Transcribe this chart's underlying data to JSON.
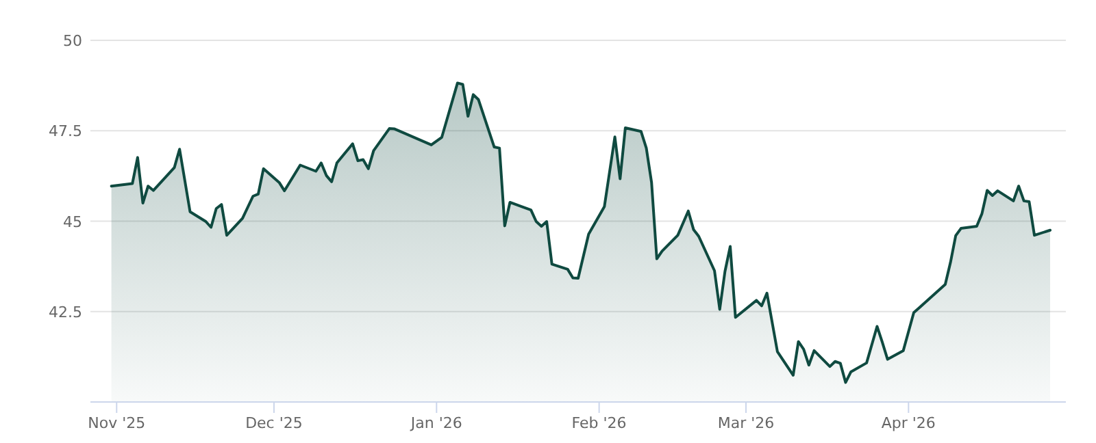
{
  "chart_data": {
    "type": "area",
    "x": [
      "2025-10-31",
      "2025-11-04",
      "2025-11-05",
      "2025-11-06",
      "2025-11-07",
      "2025-11-08",
      "2025-11-12",
      "2025-11-13",
      "2025-11-15",
      "2025-11-18",
      "2025-11-19",
      "2025-11-20",
      "2025-11-21",
      "2025-11-22",
      "2025-11-25",
      "2025-11-27",
      "2025-11-28",
      "2025-11-29",
      "2025-12-02",
      "2025-12-03",
      "2025-12-06",
      "2025-12-09",
      "2025-12-10",
      "2025-12-11",
      "2025-12-12",
      "2025-12-13",
      "2025-12-16",
      "2025-12-17",
      "2025-12-18",
      "2025-12-19",
      "2025-12-20",
      "2025-12-23",
      "2025-12-24",
      "2025-12-31",
      "2026-01-02",
      "2026-01-05",
      "2026-01-06",
      "2026-01-07",
      "2026-01-08",
      "2026-01-09",
      "2026-01-12",
      "2026-01-13",
      "2026-01-14",
      "2026-01-15",
      "2026-01-19",
      "2026-01-20",
      "2026-01-21",
      "2026-01-22",
      "2026-01-23",
      "2026-01-26",
      "2026-01-27",
      "2026-01-28",
      "2026-01-30",
      "2026-02-02",
      "2026-02-04",
      "2026-02-05",
      "2026-02-06",
      "2026-02-09",
      "2026-02-10",
      "2026-02-11",
      "2026-02-12",
      "2026-02-13",
      "2026-02-16",
      "2026-02-18",
      "2026-02-19",
      "2026-02-20",
      "2026-02-23",
      "2026-02-24",
      "2026-02-25",
      "2026-02-26",
      "2026-02-27",
      "2026-03-03",
      "2026-03-04",
      "2026-03-05",
      "2026-03-07",
      "2026-03-10",
      "2026-03-11",
      "2026-03-12",
      "2026-03-13",
      "2026-03-14",
      "2026-03-17",
      "2026-03-18",
      "2026-03-19",
      "2026-03-20",
      "2026-03-21",
      "2026-03-24",
      "2026-03-26",
      "2026-03-27",
      "2026-03-28",
      "2026-03-31",
      "2026-04-02",
      "2026-04-03",
      "2026-04-08",
      "2026-04-09",
      "2026-04-10",
      "2026-04-11",
      "2026-04-14",
      "2026-04-15",
      "2026-04-16",
      "2026-04-17",
      "2026-04-18",
      "2026-04-21",
      "2026-04-22",
      "2026-04-23",
      "2026-04-24",
      "2026-04-25",
      "2026-04-28"
    ],
    "series": [
      {
        "color": "#0f4a40",
        "values": [
          45.97,
          46.04,
          46.76,
          45.5,
          45.97,
          45.85,
          46.48,
          46.99,
          45.26,
          44.99,
          44.83,
          45.35,
          45.46,
          44.61,
          45.08,
          45.69,
          45.75,
          46.45,
          46.07,
          45.84,
          46.55,
          46.38,
          46.61,
          46.26,
          46.09,
          46.61,
          47.14,
          46.67,
          46.7,
          46.45,
          46.95,
          47.56,
          47.55,
          47.11,
          47.32,
          48.82,
          48.78,
          47.9,
          48.5,
          48.36,
          47.05,
          47.02,
          44.87,
          45.52,
          45.31,
          44.99,
          44.86,
          44.99,
          43.81,
          43.67,
          43.43,
          43.42,
          44.64,
          45.4,
          47.33,
          46.17,
          47.58,
          47.48,
          47.02,
          46.07,
          43.96,
          44.17,
          44.61,
          45.28,
          44.77,
          44.58,
          43.63,
          42.56,
          43.61,
          44.3,
          42.34,
          42.81,
          42.66,
          43.01,
          41.39,
          40.74,
          41.67,
          41.46,
          41.02,
          41.42,
          40.98,
          41.12,
          41.07,
          40.54,
          40.83,
          41.08,
          42.09,
          41.65,
          41.18,
          41.42,
          42.47,
          42.6,
          43.25,
          43.86,
          44.6,
          44.8,
          44.86,
          45.21,
          45.85,
          45.71,
          45.84,
          45.56,
          45.97,
          45.56,
          45.54,
          44.61,
          44.75
        ]
      }
    ],
    "xlim": [
      "2025-10-27",
      "2026-05-01"
    ],
    "xticks": [
      {
        "value": "2025-11-01",
        "label": "Nov '25"
      },
      {
        "value": "2025-12-01",
        "label": "Dec '25"
      },
      {
        "value": "2026-01-01",
        "label": "Jan '26"
      },
      {
        "value": "2026-02-01",
        "label": "Feb '26"
      },
      {
        "value": "2026-03-01",
        "label": "Mar '26"
      },
      {
        "value": "2026-04-01",
        "label": "Apr '26"
      }
    ],
    "ylim": [
      40,
      50
    ],
    "yticks": [
      42.5,
      45,
      47.5,
      50
    ],
    "grid": "y"
  }
}
